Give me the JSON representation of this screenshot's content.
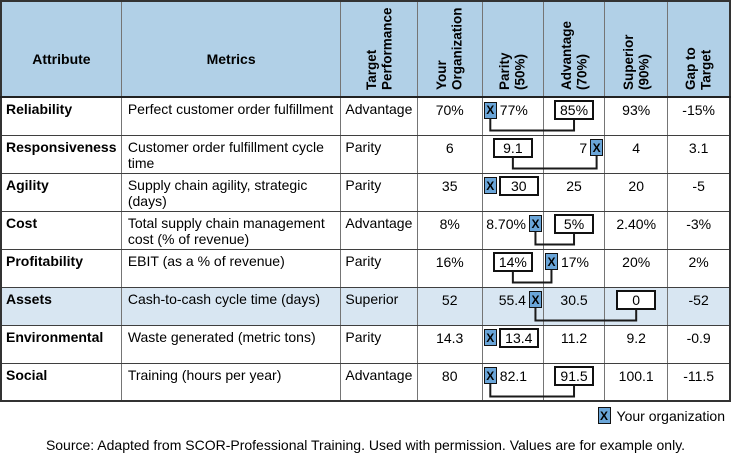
{
  "table": {
    "headers": {
      "attribute": "Attribute",
      "metrics": "Metrics",
      "target": "Target\nPerformance",
      "org": "Your\nOrganization",
      "parity": "Parity\n(50%)",
      "advantage": "Advantage\n(70%)",
      "superior": "Superior\n(90%)",
      "gap": "Gap to\nTarget"
    },
    "rows": [
      {
        "attribute": "Reliability",
        "metrics": "Perfect customer order fulfillment",
        "target": "Advantage",
        "org": "70%",
        "parity": {
          "align": "start",
          "segments": [
            {
              "type": "marker"
            },
            {
              "type": "text",
              "value": "77%"
            }
          ]
        },
        "advantage": {
          "align": "center",
          "segments": [
            {
              "type": "box",
              "value": "85%"
            }
          ]
        },
        "superior": {
          "align": "center",
          "segments": [
            {
              "type": "text",
              "value": "93%"
            }
          ]
        },
        "gap": "-15%",
        "connector": true,
        "highlight": false
      },
      {
        "attribute": "Responsiveness",
        "metrics": "Customer order fulfillment cycle time",
        "target": "Parity",
        "org": "6",
        "parity": {
          "align": "center",
          "segments": [
            {
              "type": "box",
              "value": "9.1"
            }
          ]
        },
        "advantage": {
          "align": "end",
          "segments": [
            {
              "type": "text",
              "value": "7"
            },
            {
              "type": "marker"
            }
          ]
        },
        "superior": {
          "align": "center",
          "segments": [
            {
              "type": "text",
              "value": "4"
            }
          ]
        },
        "gap": "3.1",
        "connector": true,
        "highlight": false
      },
      {
        "attribute": "Agility",
        "metrics": "Supply chain agility, strategic (days)",
        "target": "Parity",
        "org": "35",
        "parity": {
          "align": "start",
          "segments": [
            {
              "type": "marker"
            },
            {
              "type": "box",
              "value": "30"
            }
          ]
        },
        "advantage": {
          "align": "center",
          "segments": [
            {
              "type": "text",
              "value": "25"
            }
          ]
        },
        "superior": {
          "align": "center",
          "segments": [
            {
              "type": "text",
              "value": "20"
            }
          ]
        },
        "gap": "-5",
        "connector": false,
        "highlight": false
      },
      {
        "attribute": "Cost",
        "metrics": "Total supply chain management cost (% of revenue)",
        "target": "Advantage",
        "org": "8%",
        "parity": {
          "align": "end",
          "segments": [
            {
              "type": "text",
              "value": "8.70%"
            },
            {
              "type": "marker"
            }
          ]
        },
        "advantage": {
          "align": "center",
          "segments": [
            {
              "type": "box",
              "value": "5%"
            }
          ]
        },
        "superior": {
          "align": "center",
          "segments": [
            {
              "type": "text",
              "value": "2.40%"
            }
          ]
        },
        "gap": "-3%",
        "connector": true,
        "highlight": false
      },
      {
        "attribute": "Profitability",
        "metrics": "EBIT (as a % of revenue)",
        "target": "Parity",
        "org": "16%",
        "parity": {
          "align": "center",
          "segments": [
            {
              "type": "box",
              "value": "14%"
            }
          ]
        },
        "advantage": {
          "align": "start",
          "segments": [
            {
              "type": "marker"
            },
            {
              "type": "text",
              "value": "17%"
            }
          ]
        },
        "superior": {
          "align": "center",
          "segments": [
            {
              "type": "text",
              "value": "20%"
            }
          ]
        },
        "gap": "2%",
        "connector": true,
        "highlight": false
      },
      {
        "attribute": "Assets",
        "metrics": "Cash-to-cash cycle time (days)",
        "target": "Superior",
        "org": "52",
        "parity": {
          "align": "end",
          "segments": [
            {
              "type": "text",
              "value": "55.4"
            },
            {
              "type": "marker"
            }
          ]
        },
        "advantage": {
          "align": "center",
          "segments": [
            {
              "type": "text",
              "value": "30.5"
            }
          ]
        },
        "superior": {
          "align": "center",
          "segments": [
            {
              "type": "box",
              "value": "0"
            }
          ]
        },
        "gap": "-52",
        "connector": true,
        "highlight": true
      },
      {
        "attribute": "Environmental",
        "metrics": "Waste generated (metric tons)",
        "target": "Parity",
        "org": "14.3",
        "parity": {
          "align": "start",
          "segments": [
            {
              "type": "marker"
            },
            {
              "type": "box",
              "value": "13.4"
            }
          ]
        },
        "advantage": {
          "align": "center",
          "segments": [
            {
              "type": "text",
              "value": "11.2"
            }
          ]
        },
        "superior": {
          "align": "center",
          "segments": [
            {
              "type": "text",
              "value": "9.2"
            }
          ]
        },
        "gap": "-0.9",
        "connector": false,
        "highlight": false
      },
      {
        "attribute": "Social",
        "metrics": "Training (hours per year)",
        "target": "Advantage",
        "org": "80",
        "parity": {
          "align": "start",
          "segments": [
            {
              "type": "marker"
            },
            {
              "type": "text",
              "value": "82.1"
            }
          ]
        },
        "advantage": {
          "align": "center",
          "segments": [
            {
              "type": "box",
              "value": "91.5"
            }
          ]
        },
        "superior": {
          "align": "center",
          "segments": [
            {
              "type": "text",
              "value": "100.1"
            }
          ]
        },
        "gap": "-11.5",
        "connector": true,
        "highlight": false
      }
    ]
  },
  "legend": {
    "marker_char": "X",
    "label": "Your organization"
  },
  "source": "Source: Adapted from SCOR-Professional Training. Used with permission. Values are for example only.",
  "colors": {
    "header_bg": "#b1d0e7",
    "highlight_bg": "#d8e6f2",
    "marker_bg": "#6aa5d8",
    "connector": "#1a1a1a"
  }
}
